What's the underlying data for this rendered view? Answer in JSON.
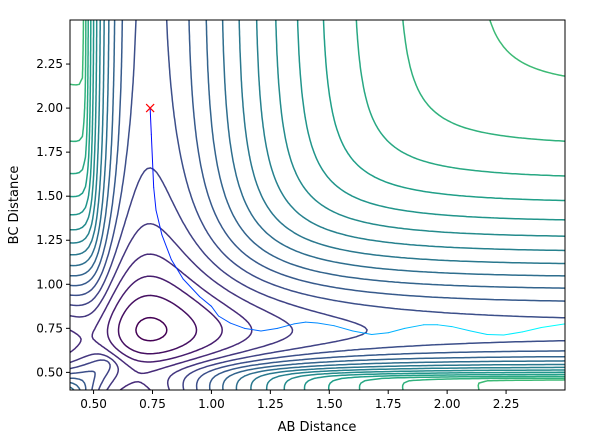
{
  "chart_data": {
    "type": "contour",
    "title": "",
    "xlabel": "AB Distance",
    "ylabel": "BC Distance",
    "xlim": [
      0.4,
      2.5
    ],
    "ylim": [
      0.4,
      2.5
    ],
    "xticks": [
      "0.50",
      "0.75",
      "1.00",
      "1.25",
      "1.50",
      "1.75",
      "2.00",
      "2.25"
    ],
    "yticks": [
      "0.50",
      "0.75",
      "1.00",
      "1.25",
      "1.50",
      "1.75",
      "2.00",
      "2.25"
    ],
    "xtick_values": [
      0.5,
      0.75,
      1.0,
      1.25,
      1.5,
      1.75,
      2.0,
      2.25
    ],
    "ytick_values": [
      0.5,
      0.75,
      1.0,
      1.25,
      1.5,
      1.75,
      2.0,
      2.25
    ],
    "colormap": "viridis",
    "contour_levels": 26,
    "grid": false,
    "start_marker": {
      "x": 0.74,
      "y": 2.0,
      "symbol": "x",
      "color": "#ff0000"
    },
    "trajectory": {
      "color_start": "#0000ff",
      "color_end": "#00ffff",
      "points": [
        [
          0.74,
          2.0
        ],
        [
          0.745,
          1.85
        ],
        [
          0.75,
          1.7
        ],
        [
          0.755,
          1.55
        ],
        [
          0.765,
          1.42
        ],
        [
          0.79,
          1.28
        ],
        [
          0.83,
          1.14
        ],
        [
          0.88,
          1.03
        ],
        [
          0.95,
          0.93
        ],
        [
          1.0,
          0.875
        ],
        [
          1.03,
          0.82
        ],
        [
          1.08,
          0.78
        ],
        [
          1.14,
          0.75
        ],
        [
          1.21,
          0.735
        ],
        [
          1.28,
          0.75
        ],
        [
          1.35,
          0.775
        ],
        [
          1.4,
          0.785
        ],
        [
          1.45,
          0.78
        ],
        [
          1.52,
          0.765
        ],
        [
          1.6,
          0.735
        ],
        [
          1.68,
          0.715
        ],
        [
          1.75,
          0.725
        ],
        [
          1.82,
          0.75
        ],
        [
          1.9,
          0.77
        ],
        [
          1.96,
          0.77
        ],
        [
          2.02,
          0.76
        ],
        [
          2.1,
          0.735
        ],
        [
          2.17,
          0.715
        ],
        [
          2.24,
          0.712
        ],
        [
          2.32,
          0.73
        ],
        [
          2.4,
          0.755
        ],
        [
          2.5,
          0.775
        ]
      ]
    }
  }
}
